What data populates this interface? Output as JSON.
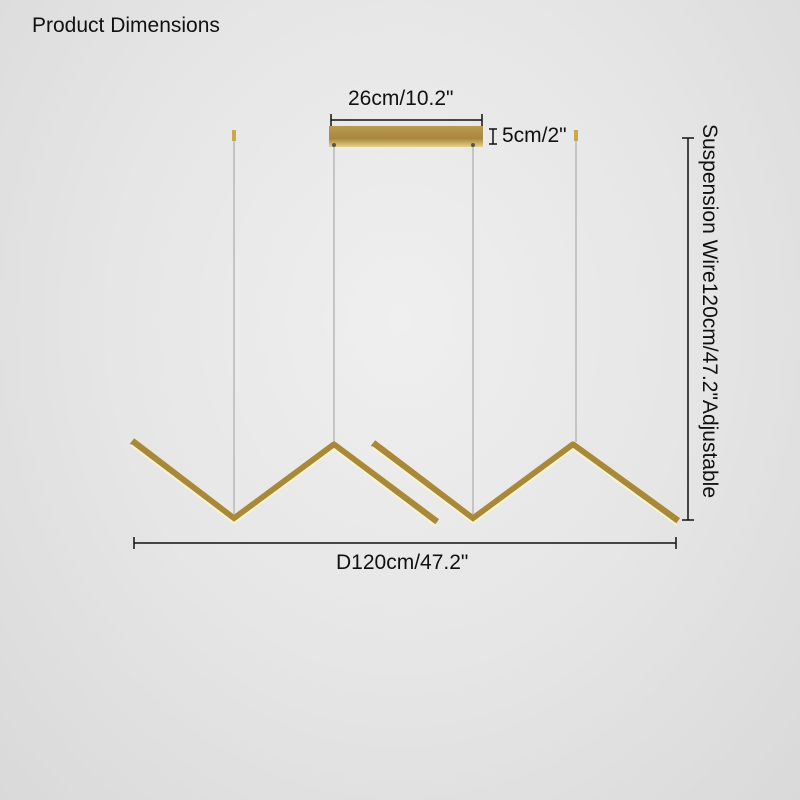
{
  "title": "Product Dimensions",
  "dimensions": {
    "canopy_width": "26cm/10.2\"",
    "canopy_height": "5cm/2\"",
    "suspension": "Suspension Wire120cm/47.2\"Adjustable",
    "diameter": "D120cm/47.2\""
  },
  "colors": {
    "gold": "#b8963e",
    "light": "#fff6d0",
    "wire": "#b0b0b0",
    "line": "#111111"
  }
}
